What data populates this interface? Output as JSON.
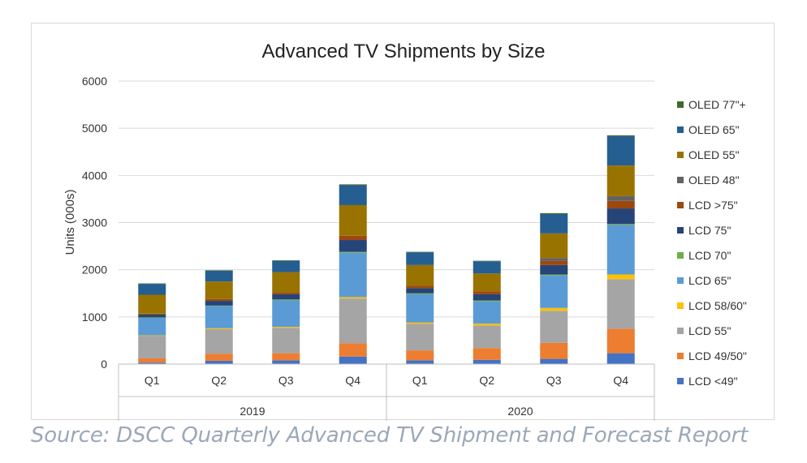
{
  "source_note": "Source: DSCC Quarterly Advanced TV Shipment and Forecast Report",
  "chart_data": {
    "type": "bar",
    "stacked": true,
    "title": "Advanced TV Shipments by Size",
    "xlabel": "",
    "ylabel": "Units (000s)",
    "ylim": [
      0,
      6000
    ],
    "yticks": [
      0,
      1000,
      2000,
      3000,
      4000,
      5000,
      6000
    ],
    "grid": true,
    "legend_position": "right",
    "categories": [
      "Q1",
      "Q2",
      "Q3",
      "Q4",
      "Q1",
      "Q2",
      "Q3",
      "Q4"
    ],
    "groups": [
      {
        "label": "2019",
        "categories": [
          "Q1",
          "Q2",
          "Q3",
          "Q4"
        ]
      },
      {
        "label": "2020",
        "categories": [
          "Q1",
          "Q2",
          "Q3",
          "Q4"
        ]
      }
    ],
    "series": [
      {
        "name": "LCD <49\"",
        "color": "#4472c4",
        "values": [
          30,
          70,
          80,
          160,
          80,
          90,
          110,
          230
        ]
      },
      {
        "name": "LCD 49/50\"",
        "color": "#ed7d31",
        "values": [
          90,
          150,
          150,
          280,
          210,
          250,
          340,
          520
        ]
      },
      {
        "name": "LCD 55\"",
        "color": "#a5a5a5",
        "values": [
          480,
          520,
          540,
          950,
          560,
          480,
          680,
          1050
        ]
      },
      {
        "name": "LCD 58/60\"",
        "color": "#ffc000",
        "values": [
          10,
          20,
          20,
          30,
          30,
          40,
          60,
          100
        ]
      },
      {
        "name": "LCD 65\"",
        "color": "#5b9bd5",
        "values": [
          370,
          470,
          560,
          940,
          600,
          470,
          690,
          1050
        ]
      },
      {
        "name": "LCD 70\"",
        "color": "#70ad47",
        "values": [
          10,
          10,
          20,
          20,
          20,
          20,
          20,
          20
        ]
      },
      {
        "name": "LCD 75\"",
        "color": "#264478",
        "values": [
          60,
          100,
          110,
          250,
          110,
          130,
          200,
          330
        ]
      },
      {
        "name": "LCD >75\"",
        "color": "#9e480e",
        "values": [
          20,
          40,
          40,
          90,
          50,
          60,
          90,
          160
        ]
      },
      {
        "name": "OLED 48\"",
        "color": "#636363",
        "values": [
          0,
          0,
          0,
          0,
          0,
          0,
          60,
          100
        ]
      },
      {
        "name": "OLED 55\"",
        "color": "#997300",
        "values": [
          400,
          370,
          430,
          650,
          440,
          380,
          520,
          650
        ]
      },
      {
        "name": "OLED 65\"",
        "color": "#255e91",
        "values": [
          230,
          230,
          240,
          420,
          270,
          260,
          410,
          620
        ]
      },
      {
        "name": "OLED 77\"+",
        "color": "#43682b",
        "values": [
          10,
          10,
          10,
          20,
          10,
          10,
          20,
          20
        ]
      }
    ]
  }
}
